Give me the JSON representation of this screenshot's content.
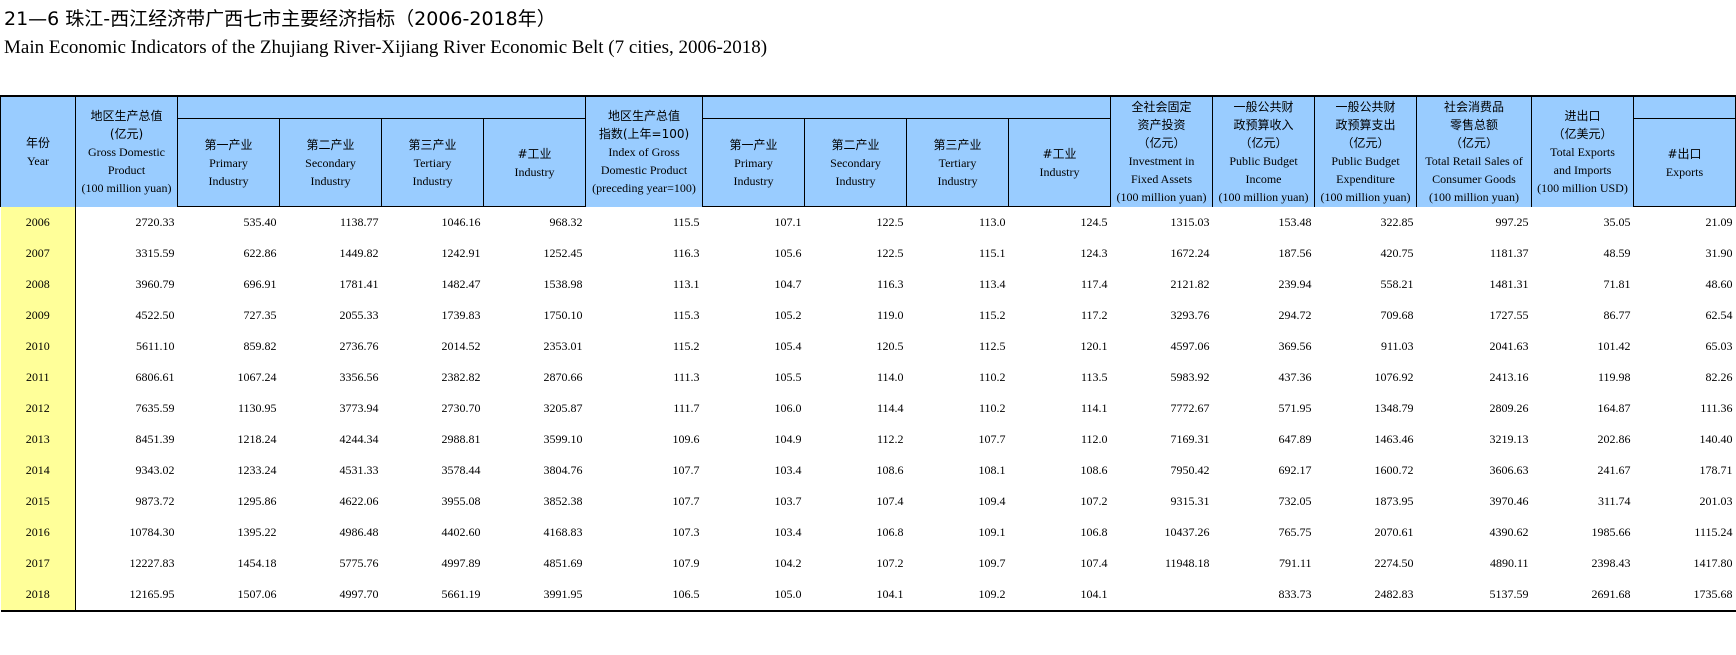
{
  "title_cn": "21—6 珠江-西江经济带广西七市主要经济指标（2006-2018年）",
  "title_en": "Main Economic Indicators of the Zhujiang River-Xijiang River Economic Belt (7 cities, 2006-2018)",
  "headers": {
    "year": {
      "cn": "年份",
      "en": "Year"
    },
    "gdp": {
      "cn_lines": [
        "地区生产总值",
        "(亿元)"
      ],
      "en_lines": [
        "Gross Domestic",
        "Product",
        "(100 million yuan)"
      ]
    },
    "index": {
      "cn_lines": [
        "地区生产总值",
        "指数(上年=100)"
      ],
      "en_lines": [
        "Index of Gross",
        "Domestic Product",
        "(preceding year=100)"
      ]
    },
    "primary": {
      "cn": "第一产业",
      "en_lines": [
        "Primary",
        "Industry"
      ]
    },
    "secondary": {
      "cn": "第二产业",
      "en_lines": [
        "Secondary",
        "Industry"
      ]
    },
    "tertiary": {
      "cn": "第三产业",
      "en_lines": [
        "Tertiary",
        "Industry"
      ]
    },
    "industry": {
      "cn": "#工业",
      "en": "Industry"
    },
    "fixed": {
      "cn_lines": [
        "全社会固定",
        "资产投资",
        "（亿元）"
      ],
      "en_lines": [
        "Investment in",
        "Fixed Assets",
        "(100 million yuan)"
      ]
    },
    "income": {
      "cn_lines": [
        "一般公共财",
        "政预算收入",
        "（亿元）"
      ],
      "en_lines": [
        "Public Budget",
        "Income",
        "(100 million yuan)"
      ]
    },
    "expend": {
      "cn_lines": [
        "一般公共财",
        "政预算支出",
        "（亿元）"
      ],
      "en_lines": [
        "Public Budget",
        "Expenditure",
        "(100 million yuan)"
      ]
    },
    "retail": {
      "cn_lines": [
        "社会消费品",
        "零售总额",
        "（亿元）"
      ],
      "en_lines": [
        "Total Retail Sales of",
        "Consumer Goods",
        "(100 million yuan)"
      ]
    },
    "trade": {
      "cn_lines": [
        "进出口",
        "（亿美元）"
      ],
      "en_lines": [
        "Total Exports",
        "and Imports",
        "(100 million USD)"
      ]
    },
    "exports": {
      "cn": "#出口",
      "en": "Exports"
    }
  },
  "rows": [
    [
      "2006",
      "2720.33",
      "535.40",
      "1138.77",
      "1046.16",
      "968.32",
      "115.5",
      "107.1",
      "122.5",
      "113.0",
      "124.5",
      "1315.03",
      "153.48",
      "322.85",
      "997.25",
      "35.05",
      "21.09"
    ],
    [
      "2007",
      "3315.59",
      "622.86",
      "1449.82",
      "1242.91",
      "1252.45",
      "116.3",
      "105.6",
      "122.5",
      "115.1",
      "124.3",
      "1672.24",
      "187.56",
      "420.75",
      "1181.37",
      "48.59",
      "31.90"
    ],
    [
      "2008",
      "3960.79",
      "696.91",
      "1781.41",
      "1482.47",
      "1538.98",
      "113.1",
      "104.7",
      "116.3",
      "113.4",
      "117.4",
      "2121.82",
      "239.94",
      "558.21",
      "1481.31",
      "71.81",
      "48.60"
    ],
    [
      "2009",
      "4522.50",
      "727.35",
      "2055.33",
      "1739.83",
      "1750.10",
      "115.3",
      "105.2",
      "119.0",
      "115.2",
      "117.2",
      "3293.76",
      "294.72",
      "709.68",
      "1727.55",
      "86.77",
      "62.54"
    ],
    [
      "2010",
      "5611.10",
      "859.82",
      "2736.76",
      "2014.52",
      "2353.01",
      "115.2",
      "105.4",
      "120.5",
      "112.5",
      "120.1",
      "4597.06",
      "369.56",
      "911.03",
      "2041.63",
      "101.42",
      "65.03"
    ],
    [
      "2011",
      "6806.61",
      "1067.24",
      "3356.56",
      "2382.82",
      "2870.66",
      "111.3",
      "105.5",
      "114.0",
      "110.2",
      "113.5",
      "5983.92",
      "437.36",
      "1076.92",
      "2413.16",
      "119.98",
      "82.26"
    ],
    [
      "2012",
      "7635.59",
      "1130.95",
      "3773.94",
      "2730.70",
      "3205.87",
      "111.7",
      "106.0",
      "114.4",
      "110.2",
      "114.1",
      "7772.67",
      "571.95",
      "1348.79",
      "2809.26",
      "164.87",
      "111.36"
    ],
    [
      "2013",
      "8451.39",
      "1218.24",
      "4244.34",
      "2988.81",
      "3599.10",
      "109.6",
      "104.9",
      "112.2",
      "107.7",
      "112.0",
      "7169.31",
      "647.89",
      "1463.46",
      "3219.13",
      "202.86",
      "140.40"
    ],
    [
      "2014",
      "9343.02",
      "1233.24",
      "4531.33",
      "3578.44",
      "3804.76",
      "107.7",
      "103.4",
      "108.6",
      "108.1",
      "108.6",
      "7950.42",
      "692.17",
      "1600.72",
      "3606.63",
      "241.67",
      "178.71"
    ],
    [
      "2015",
      "9873.72",
      "1295.86",
      "4622.06",
      "3955.08",
      "3852.38",
      "107.7",
      "103.7",
      "107.4",
      "109.4",
      "107.2",
      "9315.31",
      "732.05",
      "1873.95",
      "3970.46",
      "311.74",
      "201.03"
    ],
    [
      "2016",
      "10784.30",
      "1395.22",
      "4986.48",
      "4402.60",
      "4168.83",
      "107.3",
      "103.4",
      "106.8",
      "109.1",
      "106.8",
      "10437.26",
      "765.75",
      "2070.61",
      "4390.62",
      "1985.66",
      "1115.24"
    ],
    [
      "2017",
      "12227.83",
      "1454.18",
      "5775.76",
      "4997.89",
      "4851.69",
      "107.9",
      "104.2",
      "107.2",
      "109.7",
      "107.4",
      "11948.18",
      "791.11",
      "2274.50",
      "4890.11",
      "2398.43",
      "1417.80"
    ],
    [
      "2018",
      "12165.95",
      "1507.06",
      "4997.70",
      "5661.19",
      "3991.95",
      "106.5",
      "105.0",
      "104.1",
      "109.2",
      "104.1",
      "",
      "833.73",
      "2482.83",
      "5137.59",
      "2691.68",
      "1735.68"
    ]
  ]
}
